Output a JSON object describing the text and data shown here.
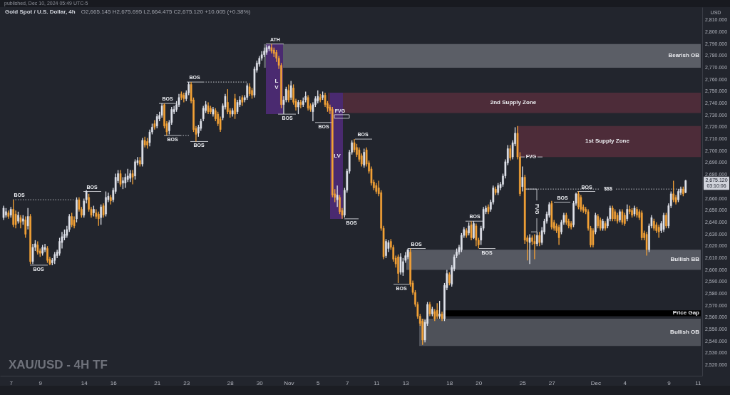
{
  "chart_data": {
    "type": "candlestick",
    "title": "Gold Spot / U.S. Dollar, 4h",
    "subtitle": "O2,665.145 H2,675.695 L2,664.475 C2,675.120 +10.005 (+0.38%)",
    "ylabel": "USD",
    "categories": [
      null,
      null,
      null,
      "7",
      null,
      null,
      null,
      null,
      null,
      null,
      null,
      null,
      null,
      null,
      null,
      "9",
      null,
      null,
      null,
      null,
      null,
      null,
      null,
      null,
      null,
      null,
      null,
      null,
      null,
      null,
      null,
      null,
      null,
      "14",
      null,
      null,
      null,
      null,
      null,
      null,
      null,
      null,
      null,
      null,
      null,
      "16",
      null,
      null,
      null,
      null,
      null,
      null,
      null,
      null,
      null,
      null,
      null,
      null,
      null,
      null,
      null,
      null,
      null,
      "21",
      null,
      null,
      null,
      null,
      null,
      null,
      null,
      null,
      null,
      null,
      null,
      "23",
      null,
      null,
      null,
      null,
      null,
      null,
      null,
      null,
      null,
      null,
      null,
      null,
      null,
      null,
      null,
      null,
      null,
      "28",
      null,
      null,
      null,
      null,
      null,
      null,
      null,
      null,
      null,
      null,
      null,
      "30",
      null,
      null,
      null,
      null,
      null,
      null,
      null,
      null,
      null,
      null,
      null,
      "Nov",
      null,
      null,
      null,
      null,
      null,
      null,
      null,
      null,
      null,
      null,
      null,
      "5",
      null,
      null,
      null,
      null,
      null,
      null,
      null,
      null,
      null,
      null,
      null,
      "7",
      null,
      null,
      null,
      null,
      null,
      null,
      null,
      null,
      null,
      null,
      null,
      "11",
      null,
      null,
      null,
      null,
      null,
      null,
      null,
      null,
      null,
      null,
      null,
      "13",
      null,
      null,
      null,
      null,
      null,
      null,
      null,
      null,
      null,
      null,
      null,
      null,
      null,
      null,
      null,
      null,
      null,
      "18",
      null,
      null,
      null,
      null,
      null,
      null,
      null,
      null,
      null,
      null,
      null,
      "20",
      null,
      null,
      null,
      null,
      null,
      null,
      null,
      null,
      null,
      null,
      null,
      null,
      null,
      null,
      null,
      null,
      null,
      "25",
      null,
      null,
      null,
      null,
      null,
      null,
      null,
      null,
      null,
      null,
      null,
      "27",
      null,
      null,
      null,
      null,
      null,
      null,
      null,
      null,
      null,
      null,
      null,
      null,
      null,
      null,
      null,
      null,
      null,
      "Dec",
      null,
      null,
      null,
      null,
      null,
      null,
      null,
      null,
      null,
      null,
      null,
      "4",
      null,
      null,
      null,
      null,
      null,
      null,
      null,
      null,
      null,
      null,
      null,
      null,
      null,
      null,
      null,
      null,
      null,
      "9",
      null,
      null,
      null,
      null,
      null,
      null,
      null,
      null,
      null,
      null,
      null,
      "11",
      null
    ],
    "ohlc": [
      [
        2644,
        2654,
        2642,
        2652
      ],
      [
        2646,
        2652,
        2644,
        2649
      ],
      [
        2648,
        2650,
        2643,
        2645
      ],
      [
        2646,
        2653,
        2644,
        2651
      ],
      [
        2651,
        2659,
        2636,
        2638
      ],
      [
        2647,
        2650,
        2635,
        2638
      ],
      [
        2641,
        2649,
        2639,
        2646
      ],
      [
        2644,
        2646,
        2635,
        2640
      ],
      [
        2641,
        2646,
        2638,
        2643
      ],
      [
        2642,
        2645,
        2627,
        2630
      ],
      [
        2637,
        2652,
        2634,
        2645
      ],
      [
        2645,
        2647,
        2605,
        2607
      ],
      [
        2607,
        2622,
        2605,
        2619
      ],
      [
        2619,
        2625,
        2616,
        2622
      ],
      [
        2621,
        2624,
        2613,
        2615
      ],
      [
        2616,
        2618,
        2611,
        2614
      ],
      [
        2614,
        2621,
        2612,
        2619
      ],
      [
        2617,
        2622,
        2615,
        2619
      ],
      [
        2618,
        2620,
        2606,
        2608
      ],
      [
        2609,
        2611,
        2604,
        2605
      ],
      [
        2606,
        2610,
        2604,
        2608
      ],
      [
        2608,
        2615,
        2605,
        2613
      ],
      [
        2612,
        2617,
        2610,
        2615
      ],
      [
        2614,
        2627,
        2612,
        2624
      ],
      [
        2623,
        2632,
        2618,
        2628
      ],
      [
        2627,
        2634,
        2625,
        2630
      ],
      [
        2629,
        2637,
        2627,
        2634
      ],
      [
        2634,
        2647,
        2632,
        2645
      ],
      [
        2645,
        2648,
        2636,
        2638
      ],
      [
        2642,
        2645,
        2635,
        2637
      ],
      [
        2643,
        2661,
        2640,
        2659
      ],
      [
        2659,
        2661,
        2649,
        2651
      ],
      [
        2651,
        2653,
        2644,
        2646
      ],
      [
        2646,
        2660,
        2644,
        2658
      ],
      [
        2659,
        2667,
        2656,
        2666
      ],
      [
        2661,
        2664,
        2649,
        2651
      ],
      [
        2651,
        2653,
        2644,
        2646
      ],
      [
        2648,
        2654,
        2645,
        2651
      ],
      [
        2648,
        2651,
        2643,
        2645
      ],
      [
        2647,
        2649,
        2637,
        2643
      ],
      [
        2644,
        2655,
        2638,
        2653
      ],
      [
        2654,
        2656,
        2644,
        2646
      ],
      [
        2647,
        2666,
        2645,
        2661
      ],
      [
        2659,
        2665,
        2657,
        2662
      ],
      [
        2661,
        2663,
        2655,
        2658
      ],
      [
        2659,
        2669,
        2657,
        2667
      ],
      [
        2666,
        2681,
        2664,
        2678
      ],
      [
        2675,
        2684,
        2673,
        2681
      ],
      [
        2681,
        2684,
        2670,
        2672
      ],
      [
        2673,
        2678,
        2668,
        2675
      ],
      [
        2673,
        2681,
        2669,
        2678
      ],
      [
        2676,
        2685,
        2674,
        2679
      ],
      [
        2677,
        2684,
        2674,
        2681
      ],
      [
        2681,
        2684,
        2672,
        2678
      ],
      [
        2679,
        2693,
        2676,
        2691
      ],
      [
        2690,
        2695,
        2688,
        2692
      ],
      [
        2692,
        2695,
        2687,
        2689
      ],
      [
        2689,
        2711,
        2687,
        2709
      ],
      [
        2709,
        2712,
        2703,
        2705
      ],
      [
        2708,
        2711,
        2702,
        2705
      ],
      [
        2707,
        2718,
        2704,
        2716
      ],
      [
        2716,
        2723,
        2714,
        2720
      ],
      [
        2723,
        2726,
        2718,
        2720
      ],
      [
        2721,
        2731,
        2719,
        2729
      ],
      [
        2727,
        2733,
        2725,
        2730
      ],
      [
        2730,
        2740,
        2728,
        2738
      ],
      [
        2739,
        2740,
        2719,
        2721
      ],
      [
        2723,
        2725,
        2713,
        2716
      ],
      [
        2717,
        2726,
        2714,
        2724
      ],
      [
        2724,
        2737,
        2722,
        2735
      ],
      [
        2733,
        2738,
        2731,
        2735
      ],
      [
        2735,
        2742,
        2733,
        2739
      ],
      [
        2739,
        2748,
        2737,
        2745
      ],
      [
        2748,
        2750,
        2743,
        2745
      ],
      [
        2747,
        2749,
        2741,
        2744
      ],
      [
        2744,
        2751,
        2742,
        2749
      ],
      [
        2749,
        2758,
        2747,
        2756
      ],
      [
        2756,
        2758,
        2740,
        2742
      ],
      [
        2743,
        2745,
        2716,
        2718
      ],
      [
        2719,
        2721,
        2708,
        2714
      ],
      [
        2715,
        2722,
        2712,
        2720
      ],
      [
        2719,
        2727,
        2717,
        2725
      ],
      [
        2727,
        2738,
        2725,
        2736
      ],
      [
        2734,
        2742,
        2732,
        2739
      ],
      [
        2738,
        2741,
        2731,
        2733
      ],
      [
        2736,
        2738,
        2731,
        2733
      ],
      [
        2731,
        2737,
        2729,
        2735
      ],
      [
        2734,
        2736,
        2725,
        2727
      ],
      [
        2731,
        2733,
        2721,
        2723
      ],
      [
        2727,
        2729,
        2716,
        2718
      ],
      [
        2728,
        2740,
        2726,
        2738
      ],
      [
        2737,
        2748,
        2735,
        2746
      ],
      [
        2741,
        2752,
        2731,
        2733
      ],
      [
        2734,
        2736,
        2728,
        2731
      ],
      [
        2731,
        2736,
        2729,
        2734
      ],
      [
        2744,
        2748,
        2727,
        2731
      ],
      [
        2733,
        2743,
        2731,
        2741
      ],
      [
        2739,
        2746,
        2737,
        2743
      ],
      [
        2745,
        2747,
        2738,
        2741
      ],
      [
        2743,
        2747,
        2741,
        2745
      ],
      [
        2745,
        2757,
        2743,
        2755
      ],
      [
        2754,
        2757,
        2746,
        2748
      ],
      [
        2751,
        2753,
        2744,
        2747
      ],
      [
        2747,
        2771,
        2745,
        2769
      ],
      [
        2768,
        2776,
        2766,
        2774
      ],
      [
        2773,
        2780,
        2771,
        2778
      ],
      [
        2778,
        2784,
        2776,
        2781
      ],
      [
        2781,
        2787,
        2779,
        2784
      ],
      [
        2783,
        2789,
        2781,
        2787
      ],
      [
        2786,
        2789,
        2784,
        2788
      ],
      [
        2787,
        2790,
        2782,
        2784
      ],
      [
        2785,
        2787,
        2779,
        2782
      ],
      [
        2783,
        2785,
        2775,
        2778
      ],
      [
        2778,
        2780,
        2769,
        2772
      ],
      [
        2772,
        2774,
        2736,
        2739
      ],
      [
        2739,
        2746,
        2731,
        2743
      ],
      [
        2743,
        2754,
        2741,
        2752
      ],
      [
        2751,
        2756,
        2741,
        2743
      ],
      [
        2745,
        2759,
        2743,
        2755
      ],
      [
        2753,
        2756,
        2739,
        2741
      ],
      [
        2742,
        2744,
        2734,
        2737
      ],
      [
        2737,
        2743,
        2731,
        2741
      ],
      [
        2741,
        2743,
        2736,
        2739
      ],
      [
        2739,
        2745,
        2737,
        2742
      ],
      [
        2743,
        2750,
        2741,
        2746
      ],
      [
        2745,
        2747,
        2734,
        2736
      ],
      [
        2738,
        2740,
        2733,
        2735
      ],
      [
        2733,
        2741,
        2725,
        2739
      ],
      [
        2739,
        2746,
        2737,
        2744
      ],
      [
        2742,
        2751,
        2740,
        2746
      ],
      [
        2745,
        2748,
        2741,
        2743
      ],
      [
        2745,
        2750,
        2743,
        2747
      ],
      [
        2747,
        2749,
        2737,
        2739
      ],
      [
        2740,
        2742,
        2733,
        2736
      ],
      [
        2737,
        2739,
        2731,
        2734
      ],
      [
        2735,
        2737,
        2661,
        2663
      ],
      [
        2664,
        2668,
        2657,
        2661
      ],
      [
        2659,
        2671,
        2653,
        2663
      ],
      [
        2661,
        2663,
        2647,
        2649
      ],
      [
        2650,
        2652,
        2643,
        2646
      ],
      [
        2646,
        2669,
        2644,
        2667
      ],
      [
        2667,
        2685,
        2665,
        2683
      ],
      [
        2683,
        2701,
        2681,
        2699
      ],
      [
        2699,
        2709,
        2697,
        2707
      ],
      [
        2707,
        2710,
        2699,
        2701
      ],
      [
        2703,
        2706,
        2695,
        2697
      ],
      [
        2701,
        2703,
        2691,
        2693
      ],
      [
        2696,
        2698,
        2687,
        2689
      ],
      [
        2688,
        2702,
        2686,
        2699
      ],
      [
        2701,
        2703,
        2687,
        2689
      ],
      [
        2690,
        2692,
        2681,
        2683
      ],
      [
        2685,
        2687,
        2671,
        2673
      ],
      [
        2674,
        2676,
        2667,
        2669
      ],
      [
        2671,
        2673,
        2664,
        2666
      ],
      [
        2669,
        2675,
        2662,
        2664
      ],
      [
        2665,
        2667,
        2633,
        2635
      ],
      [
        2635,
        2637,
        2609,
        2611
      ],
      [
        2612,
        2626,
        2610,
        2624
      ],
      [
        2618,
        2625,
        2615,
        2623
      ],
      [
        2624,
        2626,
        2617,
        2619
      ],
      [
        2619,
        2621,
        2607,
        2609
      ],
      [
        2610,
        2612,
        2602,
        2605
      ],
      [
        2611,
        2613,
        2589,
        2597
      ],
      [
        2598,
        2614,
        2596,
        2611
      ],
      [
        2598,
        2610,
        2595,
        2607
      ],
      [
        2608,
        2615,
        2606,
        2612
      ],
      [
        2611,
        2618,
        2609,
        2617
      ],
      [
        2615,
        2618,
        2586,
        2588
      ],
      [
        2589,
        2591,
        2579,
        2581
      ],
      [
        2581,
        2583,
        2569,
        2571
      ],
      [
        2571,
        2573,
        2559,
        2561
      ],
      [
        2561,
        2563,
        2553,
        2555
      ],
      [
        2557,
        2559,
        2537,
        2541
      ],
      [
        2541,
        2558,
        2539,
        2556
      ],
      [
        2555,
        2573,
        2553,
        2571
      ],
      [
        2571,
        2573,
        2561,
        2563
      ],
      [
        2563,
        2569,
        2561,
        2567
      ],
      [
        2565,
        2567,
        2557,
        2559
      ],
      [
        2566,
        2572,
        2559,
        2561
      ],
      [
        2561,
        2574,
        2559,
        2563
      ],
      [
        2563,
        2565,
        2557,
        2559
      ],
      [
        2559,
        2589,
        2557,
        2587
      ],
      [
        2585,
        2600,
        2583,
        2597
      ],
      [
        2596,
        2598,
        2587,
        2589
      ],
      [
        2588,
        2604,
        2586,
        2602
      ],
      [
        2601,
        2613,
        2599,
        2611
      ],
      [
        2612,
        2618,
        2610,
        2615
      ],
      [
        2615,
        2621,
        2613,
        2619
      ],
      [
        2617,
        2631,
        2615,
        2629
      ],
      [
        2629,
        2636,
        2627,
        2634
      ],
      [
        2633,
        2635,
        2627,
        2629
      ],
      [
        2631,
        2640,
        2629,
        2637
      ],
      [
        2638,
        2641,
        2625,
        2627
      ],
      [
        2627,
        2641,
        2626,
        2639
      ],
      [
        2637,
        2639,
        2620,
        2625
      ],
      [
        2625,
        2627,
        2618,
        2621
      ],
      [
        2625,
        2637,
        2621,
        2635
      ],
      [
        2635,
        2653,
        2633,
        2651
      ],
      [
        2649,
        2654,
        2647,
        2652
      ],
      [
        2653,
        2655,
        2647,
        2649
      ],
      [
        2651,
        2659,
        2649,
        2657
      ],
      [
        2657,
        2671,
        2655,
        2669
      ],
      [
        2668,
        2670,
        2663,
        2665
      ],
      [
        2665,
        2673,
        2663,
        2671
      ],
      [
        2669,
        2674,
        2667,
        2672
      ],
      [
        2672,
        2681,
        2670,
        2679
      ],
      [
        2679,
        2693,
        2677,
        2691
      ],
      [
        2690,
        2705,
        2688,
        2702
      ],
      [
        2702,
        2705,
        2692,
        2694
      ],
      [
        2695,
        2709,
        2693,
        2707
      ],
      [
        2706,
        2720,
        2704,
        2715
      ],
      [
        2715,
        2721,
        2693,
        2695
      ],
      [
        2695,
        2699,
        2662,
        2664
      ],
      [
        2670,
        2687,
        2666,
        2678
      ],
      [
        2678,
        2680,
        2622,
        2625
      ],
      [
        2627,
        2629,
        2608,
        2624
      ],
      [
        2623,
        2630,
        2605,
        2627
      ],
      [
        2627,
        2629,
        2621,
        2624
      ],
      [
        2624,
        2630,
        2609,
        2622
      ],
      [
        2622,
        2632,
        2620,
        2629
      ],
      [
        2629,
        2632,
        2620,
        2623
      ],
      [
        2623,
        2636,
        2621,
        2633
      ],
      [
        2632,
        2643,
        2630,
        2641
      ],
      [
        2641,
        2649,
        2639,
        2647
      ],
      [
        2646,
        2657,
        2644,
        2655
      ],
      [
        2656,
        2658,
        2634,
        2636
      ],
      [
        2640,
        2642,
        2633,
        2635
      ],
      [
        2637,
        2639,
        2631,
        2633
      ],
      [
        2636,
        2638,
        2621,
        2627
      ],
      [
        2632,
        2642,
        2630,
        2640
      ],
      [
        2640,
        2648,
        2638,
        2646
      ],
      [
        2646,
        2648,
        2638,
        2640
      ],
      [
        2641,
        2643,
        2635,
        2637
      ],
      [
        2639,
        2641,
        2634,
        2636
      ],
      [
        2638,
        2658,
        2636,
        2656
      ],
      [
        2656,
        2665,
        2654,
        2664
      ],
      [
        2664,
        2666,
        2651,
        2653
      ],
      [
        2661,
        2663,
        2649,
        2651
      ],
      [
        2653,
        2655,
        2648,
        2650
      ],
      [
        2651,
        2653,
        2647,
        2649
      ],
      [
        2649,
        2651,
        2633,
        2635
      ],
      [
        2635,
        2637,
        2619,
        2621
      ],
      [
        2633,
        2635,
        2619,
        2621
      ],
      [
        2632,
        2648,
        2630,
        2646
      ],
      [
        2645,
        2647,
        2635,
        2637
      ],
      [
        2642,
        2644,
        2633,
        2635
      ],
      [
        2635,
        2643,
        2633,
        2641
      ],
      [
        2639,
        2641,
        2633,
        2635
      ],
      [
        2637,
        2645,
        2635,
        2643
      ],
      [
        2643,
        2654,
        2641,
        2652
      ],
      [
        2652,
        2654,
        2641,
        2643
      ],
      [
        2649,
        2651,
        2641,
        2643
      ],
      [
        2646,
        2648,
        2639,
        2641
      ],
      [
        2642,
        2651,
        2640,
        2649
      ],
      [
        2649,
        2651,
        2638,
        2640
      ],
      [
        2646,
        2648,
        2637,
        2639
      ],
      [
        2643,
        2655,
        2641,
        2651
      ],
      [
        2651,
        2654,
        2647,
        2649
      ],
      [
        2650,
        2652,
        2644,
        2646
      ],
      [
        2647,
        2654,
        2645,
        2652
      ],
      [
        2651,
        2653,
        2644,
        2646
      ],
      [
        2649,
        2651,
        2642,
        2644
      ],
      [
        2648,
        2650,
        2625,
        2627
      ],
      [
        2631,
        2633,
        2625,
        2627
      ],
      [
        2630,
        2632,
        2612,
        2617
      ],
      [
        2617,
        2639,
        2615,
        2637
      ],
      [
        2637,
        2646,
        2635,
        2644
      ],
      [
        2641,
        2643,
        2633,
        2635
      ],
      [
        2638,
        2640,
        2631,
        2633
      ],
      [
        2636,
        2638,
        2627,
        2632
      ],
      [
        2633,
        2641,
        2631,
        2639
      ],
      [
        2634,
        2648,
        2632,
        2646
      ],
      [
        2646,
        2648,
        2635,
        2637
      ],
      [
        2637,
        2656,
        2635,
        2654
      ],
      [
        2654,
        2666,
        2652,
        2664
      ],
      [
        2664,
        2675,
        2657,
        2659
      ],
      [
        2661,
        2663,
        2655,
        2657
      ],
      [
        2659,
        2668,
        2657,
        2666
      ],
      [
        2665,
        2670,
        2663,
        2668
      ],
      [
        2668,
        2670,
        2662,
        2664
      ],
      [
        2665.145,
        2675.695,
        2664.475,
        2675.12
      ],
      null,
      null,
      null,
      null,
      null,
      null
    ],
    "colors": [
      "#e0e3eb",
      "#e0e3eb",
      "#f4a236",
      "#e0e3eb",
      "#f4a236",
      "#f4a236",
      "#e0e3eb",
      "#f4a236",
      "#e0e3eb",
      "#f4a236",
      "#e0e3eb",
      "#f4a236",
      "#e0e3eb",
      "#e0e3eb",
      "#f4a236",
      "#f4a236",
      "#e0e3eb",
      "#e0e3eb",
      "#f4a236",
      "#f4a236",
      "#e0e3eb",
      "#e0e3eb",
      "#e0e3eb",
      "#e0e3eb",
      "#e0e3eb",
      "#e0e3eb",
      "#e0e3eb",
      "#e0e3eb",
      "#f4a236",
      "#f4a236",
      "#e0e3eb",
      "#f4a236",
      "#f4a236",
      "#e0e3eb",
      "#e0e3eb",
      "#f4a236",
      "#f4a236",
      "#e0e3eb",
      "#f4a236",
      "#f4a236",
      "#e0e3eb",
      "#f4a236",
      "#e0e3eb",
      "#e0e3eb",
      "#f4a236",
      "#e0e3eb",
      "#e0e3eb",
      "#e0e3eb",
      "#f4a236",
      "#e0e3eb",
      "#e0e3eb",
      "#e0e3eb",
      "#e0e3eb",
      "#f4a236",
      "#e0e3eb",
      "#e0e3eb",
      "#f4a236",
      "#e0e3eb",
      "#f4a236",
      "#f4a236",
      "#e0e3eb",
      "#e0e3eb",
      "#f4a236",
      "#e0e3eb",
      "#e0e3eb",
      "#e0e3eb",
      "#f4a236",
      "#f4a236",
      "#e0e3eb",
      "#e0e3eb",
      "#e0e3eb",
      "#e0e3eb",
      "#e0e3eb",
      "#f4a236",
      "#f4a236",
      "#e0e3eb",
      "#e0e3eb",
      "#f4a236",
      "#f4a236",
      "#f4a236",
      "#e0e3eb",
      "#e0e3eb",
      "#e0e3eb",
      "#e0e3eb",
      "#f4a236",
      "#f4a236",
      "#e0e3eb",
      "#f4a236",
      "#f4a236",
      "#f4a236",
      "#e0e3eb",
      "#e0e3eb",
      "#f4a236",
      "#f4a236",
      "#e0e3eb",
      "#f4a236",
      "#e0e3eb",
      "#e0e3eb",
      "#f4a236",
      "#e0e3eb",
      "#e0e3eb",
      "#f4a236",
      "#f4a236",
      "#e0e3eb",
      "#e0e3eb",
      "#e0e3eb",
      "#e0e3eb",
      "#e0e3eb",
      "#e0e3eb",
      "#e0e3eb",
      "#f4a236",
      "#f4a236",
      "#f4a236",
      "#f4a236",
      "#f4a236",
      "#e0e3eb",
      "#e0e3eb",
      "#f4a236",
      "#e0e3eb",
      "#f4a236",
      "#f4a236",
      "#e0e3eb",
      "#f4a236",
      "#e0e3eb",
      "#e0e3eb",
      "#f4a236",
      "#f4a236",
      "#e0e3eb",
      "#e0e3eb",
      "#e0e3eb",
      "#f4a236",
      "#e0e3eb",
      "#f4a236",
      "#f4a236",
      "#f4a236",
      "#f4a236",
      "#f4a236",
      "#e0e3eb",
      "#f4a236",
      "#f4a236",
      "#e0e3eb",
      "#e0e3eb",
      "#e0e3eb",
      "#e0e3eb",
      "#f4a236",
      "#f4a236",
      "#f4a236",
      "#f4a236",
      "#e0e3eb",
      "#f4a236",
      "#f4a236",
      "#f4a236",
      "#f4a236",
      "#f4a236",
      "#f4a236",
      "#f4a236",
      "#f4a236",
      "#e0e3eb",
      "#e0e3eb",
      "#f4a236",
      "#f4a236",
      "#f4a236",
      "#f4a236",
      "#e0e3eb",
      "#e0e3eb",
      "#e0e3eb",
      "#e0e3eb",
      "#f4a236",
      "#f4a236",
      "#f4a236",
      "#f4a236",
      "#f4a236",
      "#f4a236",
      "#e0e3eb",
      "#e0e3eb",
      "#f4a236",
      "#e0e3eb",
      "#f4a236",
      "#f4a236",
      "#e0e3eb",
      "#f4a236",
      "#e0e3eb",
      "#e0e3eb",
      "#f4a236",
      "#e0e3eb",
      "#e0e3eb",
      "#e0e3eb",
      "#e0e3eb",
      "#e0e3eb",
      "#e0e3eb",
      "#f4a236",
      "#e0e3eb",
      "#f4a236",
      "#e0e3eb",
      "#f4a236",
      "#f4a236",
      "#e0e3eb",
      "#e0e3eb",
      "#e0e3eb",
      "#f4a236",
      "#e0e3eb",
      "#e0e3eb",
      "#f4a236",
      "#e0e3eb",
      "#e0e3eb",
      "#e0e3eb",
      "#e0e3eb",
      "#e0e3eb",
      "#f4a236",
      "#e0e3eb",
      "#e0e3eb",
      "#f4a236",
      "#f4a236",
      "#e0e3eb",
      "#f4a236",
      "#f4a236",
      "#e0e3eb",
      "#f4a236",
      "#f4a236",
      "#e0e3eb",
      "#f4a236",
      "#e0e3eb",
      "#e0e3eb",
      "#e0e3eb",
      "#e0e3eb",
      "#f4a236",
      "#f4a236",
      "#f4a236",
      "#f4a236",
      "#e0e3eb",
      "#e0e3eb",
      "#f4a236",
      "#f4a236",
      "#f4a236",
      "#e0e3eb",
      "#e0e3eb",
      "#f4a236",
      "#f4a236",
      "#f4a236",
      "#f4a236",
      "#f4a236",
      "#f4a236",
      "#f4a236",
      "#e0e3eb",
      "#f4a236",
      "#f4a236",
      "#e0e3eb",
      "#f4a236",
      "#e0e3eb",
      "#e0e3eb",
      "#f4a236",
      "#f4a236",
      "#f4a236",
      "#e0e3eb",
      "#f4a236",
      "#f4a236",
      "#e0e3eb",
      "#f4a236",
      "#f4a236",
      "#e0e3eb",
      "#f4a236",
      "#f4a236",
      "#f4a236",
      "#f4a236",
      "#f4a236",
      "#e0e3eb",
      "#e0e3eb",
      "#f4a236",
      "#f4a236",
      "#f4a236",
      "#e0e3eb",
      "#e0e3eb",
      "#f4a236",
      "#e0e3eb",
      "#e0e3eb",
      "#f4a236",
      "#f4a236",
      "#e0e3eb",
      "#e0e3eb",
      "#f4a236",
      "#e0e3eb",
      null,
      null,
      null,
      null,
      null,
      null
    ],
    "ylim": [
      2511,
      2821
    ],
    "yticks": [
      {
        "value": 2520,
        "label": "2,520.000"
      },
      {
        "value": 2530,
        "label": "2,530.000"
      },
      {
        "value": 2540,
        "label": "2,540.000"
      },
      {
        "value": 2550,
        "label": "2,550.000"
      },
      {
        "value": 2560,
        "label": "2,560.000"
      },
      {
        "value": 2570,
        "label": "2,570.000"
      },
      {
        "value": 2580,
        "label": "2,580.000"
      },
      {
        "value": 2590,
        "label": "2,590.000"
      },
      {
        "value": 2600,
        "label": "2,600.000"
      },
      {
        "value": 2610,
        "label": "2,610.000"
      },
      {
        "value": 2620,
        "label": "2,620.000"
      },
      {
        "value": 2630,
        "label": "2,630.000"
      },
      {
        "value": 2640,
        "label": "2,640.000"
      },
      {
        "value": 2650,
        "label": "2,650.000"
      },
      {
        "value": 2660,
        "label": "2,660.000"
      },
      {
        "value": 2680,
        "label": "2,680.000"
      },
      {
        "value": 2690,
        "label": "2,690.000"
      },
      {
        "value": 2700,
        "label": "2,700.000"
      },
      {
        "value": 2710,
        "label": "2,710.000"
      },
      {
        "value": 2720,
        "label": "2,720.000"
      },
      {
        "value": 2730,
        "label": "2,730.000"
      },
      {
        "value": 2740,
        "label": "2,740.000"
      },
      {
        "value": 2750,
        "label": "2,750.000"
      },
      {
        "value": 2760,
        "label": "2,760.000"
      },
      {
        "value": 2770,
        "label": "2,770.000"
      },
      {
        "value": 2780,
        "label": "2,780.000"
      },
      {
        "value": 2790,
        "label": "2,790.000"
      },
      {
        "value": 2800,
        "label": "2,800.000"
      },
      {
        "value": 2810,
        "label": "2,810.000"
      }
    ],
    "bands": [
      {
        "axis": "y",
        "from": 2770,
        "to": 2790,
        "label": "Bearish OB",
        "color": "#5b5e66"
      },
      {
        "axis": "y",
        "from": 2732,
        "to": 2749,
        "label": "2nd Supply Zone",
        "color": "#4d2c39"
      },
      {
        "axis": "y",
        "from": 2695,
        "to": 2721,
        "label": "1st Supply Zone",
        "color": "#4d2c39"
      },
      {
        "axis": "y",
        "from": 2600,
        "to": 2617,
        "label": "Bullish BB",
        "color": "#565962"
      },
      {
        "axis": "y",
        "from": 2561,
        "to": 2566,
        "label": "Price Gap",
        "color": "#000000"
      },
      {
        "axis": "y",
        "from": 2536,
        "to": 2559,
        "label": "Bullish OB",
        "color": "#4e5159"
      }
    ],
    "ref_lines": [
      {
        "axis": "y",
        "value": 2659,
        "line_style": "dotted"
      },
      {
        "axis": "y",
        "value": 2668,
        "label": "$$$",
        "line_style": "dotted"
      }
    ],
    "annotations": [
      "published, Dec 10, 2024 05:49 UTC-5",
      "XAU/USD - 4H TF",
      {
        "text": "ATH",
        "y": 2790
      },
      {
        "text": "BOS",
        "y": 2659
      },
      "BOS",
      "BOS",
      {
        "text": "BOS",
        "y": 2740
      },
      "BOS",
      {
        "text": "BOS",
        "y": 2758
      },
      {
        "text": "BOS",
        "y": 2708
      },
      "BOS",
      "BOS",
      "BOS",
      "BOS",
      {
        "text": "BOS",
        "y": 2588
      },
      {
        "text": "BOS",
        "y": 2618
      },
      {
        "text": "BOS",
        "y": 2641
      },
      {
        "text": "BOS",
        "y": 2618
      },
      "BOS",
      "BOS",
      "FVG",
      {
        "text": "FVG",
        "y": 2695
      },
      {
        "text": "FVG",
        "y": 2668
      },
      "2,675.120",
      "03:10:06",
      "LV",
      "LV"
    ]
  }
}
